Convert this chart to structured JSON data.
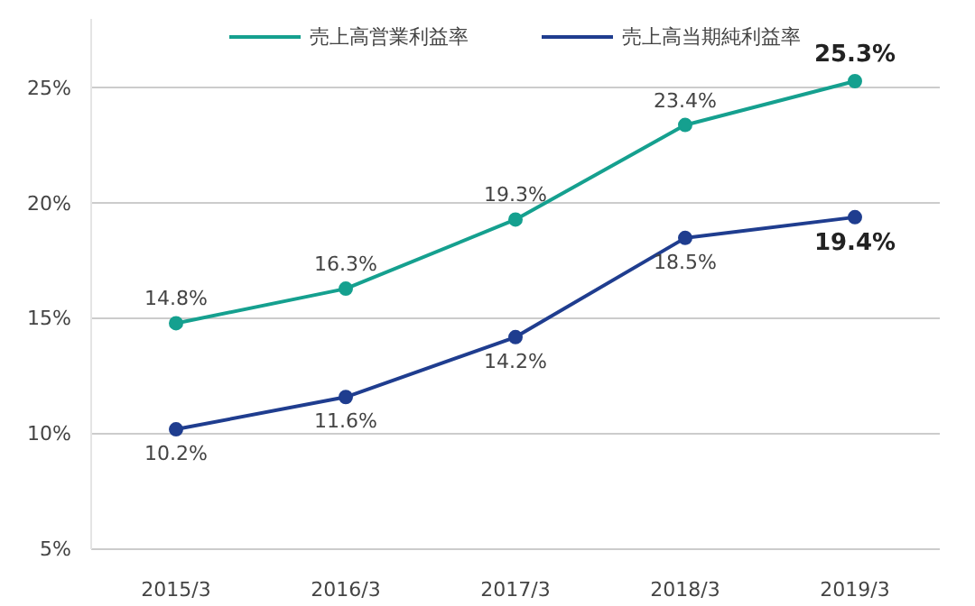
{
  "chart_data": {
    "type": "line",
    "categories": [
      "2015/3",
      "2016/3",
      "2017/3",
      "2018/3",
      "2019/3"
    ],
    "series": [
      {
        "name": "売上高営業利益率",
        "color": "#15a08f",
        "values": [
          14.8,
          16.3,
          19.3,
          23.4,
          25.3
        ],
        "value_labels": [
          "14.8%",
          "16.3%",
          "19.3%",
          "23.4%",
          "25.3%"
        ]
      },
      {
        "name": "売上高当期純利益率",
        "color": "#1f3d8f",
        "values": [
          10.2,
          11.6,
          14.2,
          18.5,
          19.4
        ],
        "value_labels": [
          "10.2%",
          "11.6%",
          "14.2%",
          "18.5%",
          "19.4%"
        ]
      }
    ],
    "ylim": [
      5,
      28
    ],
    "yticks": [
      {
        "value": 5,
        "label": "5%"
      },
      {
        "value": 10,
        "label": "10%"
      },
      {
        "value": 15,
        "label": "15%"
      },
      {
        "value": 20,
        "label": "20%"
      },
      {
        "value": 25,
        "label": "25%"
      }
    ],
    "grid": "y",
    "legend": "top",
    "marker": "circle",
    "line_style": "solid"
  }
}
